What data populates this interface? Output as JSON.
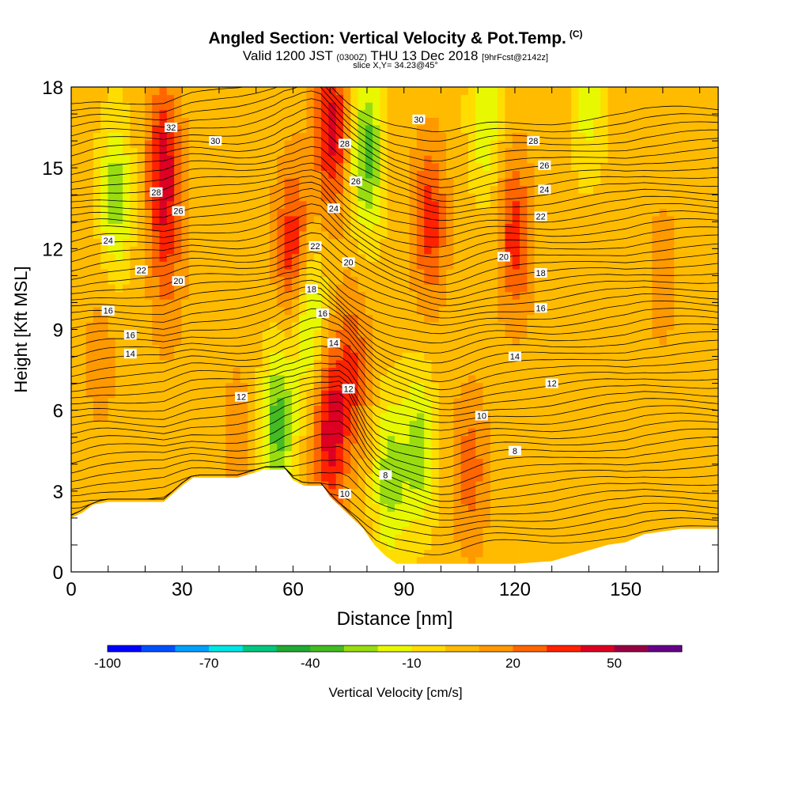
{
  "title": {
    "main": "Angled Section: Vertical Velocity & Pot.Temp.",
    "mark": "(C)",
    "valid_prefix": "Valid 1200 JST",
    "valid_utc": "(0300Z)",
    "valid_date": "THU 13 Dec 2018",
    "valid_fcst": "[9hrFcst@2142z]",
    "slice": "slice X,Y= 34.23@45°"
  },
  "chart_data": {
    "type": "heatmap",
    "x_label": "Distance [nm]",
    "y_label": "Height [Kft MSL]",
    "x_range": [
      0,
      175
    ],
    "y_range": [
      0,
      18
    ],
    "x_ticks": [
      0,
      30,
      60,
      90,
      120,
      150
    ],
    "y_ticks": [
      0,
      3,
      6,
      9,
      12,
      15,
      18
    ],
    "colorbar": {
      "label": "Vertical Velocity [cm/s]",
      "range": [
        -100,
        70
      ],
      "step": 10,
      "tick_values": [
        -100,
        -70,
        -40,
        -10,
        20,
        50
      ],
      "tick_labels": [
        "-100",
        "-70",
        "-40",
        "-10",
        "20",
        "50"
      ],
      "colors": [
        "#0000ff",
        "#0050ff",
        "#00a0ff",
        "#00e6e6",
        "#00c880",
        "#22aa33",
        "#44bb22",
        "#99dd11",
        "#e8f800",
        "#ffdd00",
        "#ffbb00",
        "#ff9900",
        "#ff6600",
        "#ff2200",
        "#dd0022",
        "#990044",
        "#660088"
      ]
    },
    "vertical_velocity_features": [
      {
        "x": 12,
        "y": 14,
        "value": -30
      },
      {
        "x": 25,
        "y": 15,
        "value": 40
      },
      {
        "x": 26,
        "y": 11,
        "value": 15
      },
      {
        "x": 56,
        "y": 5.5,
        "value": -40
      },
      {
        "x": 60,
        "y": 12,
        "value": 35
      },
      {
        "x": 64,
        "y": 9.5,
        "value": -30
      },
      {
        "x": 70,
        "y": 5.2,
        "value": 40
      },
      {
        "x": 70.5,
        "y": 16.5,
        "value": 40
      },
      {
        "x": 80,
        "y": 15.5,
        "value": -40
      },
      {
        "x": 76,
        "y": 7.5,
        "value": 25
      },
      {
        "x": 97,
        "y": 13,
        "value": 30
      },
      {
        "x": 86,
        "y": 3.5,
        "value": -30
      },
      {
        "x": 94,
        "y": 4.5,
        "value": -30
      },
      {
        "x": 112,
        "y": 17,
        "value": -25
      },
      {
        "x": 120,
        "y": 12.5,
        "value": 30
      },
      {
        "x": 140,
        "y": 17.5,
        "value": -20
      },
      {
        "x": 108,
        "y": 3.8,
        "value": 20
      },
      {
        "x": 8,
        "y": 8,
        "value": 10
      },
      {
        "x": 160,
        "y": 11,
        "value": 10
      },
      {
        "x": 45,
        "y": 5,
        "value": 10
      }
    ],
    "potential_temperature_levels": [
      8,
      10,
      12,
      14,
      16,
      18,
      20,
      22,
      24,
      26,
      28,
      30,
      32
    ],
    "potential_temperature_labels": [
      {
        "x": 27,
        "y": 16.5,
        "text": "32"
      },
      {
        "x": 39,
        "y": 16.0,
        "text": "30"
      },
      {
        "x": 23,
        "y": 14.1,
        "text": "28"
      },
      {
        "x": 29,
        "y": 13.4,
        "text": "26"
      },
      {
        "x": 10,
        "y": 12.3,
        "text": "24"
      },
      {
        "x": 19,
        "y": 11.2,
        "text": "22"
      },
      {
        "x": 29,
        "y": 10.8,
        "text": "20"
      },
      {
        "x": 10,
        "y": 9.7,
        "text": "16"
      },
      {
        "x": 16,
        "y": 8.8,
        "text": "16"
      },
      {
        "x": 16,
        "y": 8.1,
        "text": "14"
      },
      {
        "x": 46,
        "y": 6.5,
        "text": "12"
      },
      {
        "x": 74,
        "y": 15.9,
        "text": "28"
      },
      {
        "x": 77,
        "y": 14.5,
        "text": "26"
      },
      {
        "x": 71,
        "y": 13.5,
        "text": "24"
      },
      {
        "x": 66,
        "y": 12.1,
        "text": "22"
      },
      {
        "x": 75,
        "y": 11.5,
        "text": "20"
      },
      {
        "x": 65,
        "y": 10.5,
        "text": "18"
      },
      {
        "x": 68,
        "y": 9.6,
        "text": "16"
      },
      {
        "x": 71,
        "y": 8.5,
        "text": "14"
      },
      {
        "x": 75,
        "y": 6.8,
        "text": "12"
      },
      {
        "x": 74,
        "y": 2.9,
        "text": "10"
      },
      {
        "x": 85,
        "y": 3.6,
        "text": "8"
      },
      {
        "x": 94,
        "y": 16.8,
        "text": "30"
      },
      {
        "x": 125,
        "y": 16.0,
        "text": "28"
      },
      {
        "x": 128,
        "y": 15.1,
        "text": "26"
      },
      {
        "x": 128,
        "y": 14.2,
        "text": "24"
      },
      {
        "x": 127,
        "y": 13.2,
        "text": "22"
      },
      {
        "x": 117,
        "y": 11.7,
        "text": "20"
      },
      {
        "x": 127,
        "y": 11.1,
        "text": "18"
      },
      {
        "x": 127,
        "y": 9.8,
        "text": "16"
      },
      {
        "x": 120,
        "y": 8.0,
        "text": "14"
      },
      {
        "x": 130,
        "y": 7.0,
        "text": "12"
      },
      {
        "x": 111,
        "y": 5.8,
        "text": "10"
      },
      {
        "x": 120,
        "y": 4.5,
        "text": "8"
      }
    ],
    "terrain": [
      [
        0,
        2.0
      ],
      [
        3,
        2.2
      ],
      [
        6,
        2.5
      ],
      [
        10,
        2.6
      ],
      [
        15,
        2.6
      ],
      [
        20,
        2.6
      ],
      [
        25,
        2.6
      ],
      [
        30,
        3.2
      ],
      [
        33,
        3.5
      ],
      [
        40,
        3.5
      ],
      [
        45,
        3.5
      ],
      [
        50,
        3.7
      ],
      [
        52,
        3.8
      ],
      [
        58,
        3.8
      ],
      [
        60,
        3.4
      ],
      [
        63,
        3.2
      ],
      [
        68,
        3.2
      ],
      [
        70,
        2.8
      ],
      [
        73,
        2.4
      ],
      [
        76,
        2.0
      ],
      [
        79,
        1.6
      ],
      [
        82,
        1.0
      ],
      [
        85,
        0.6
      ],
      [
        88,
        0.3
      ],
      [
        90,
        0.3
      ],
      [
        100,
        0.3
      ],
      [
        110,
        0.3
      ],
      [
        120,
        0.3
      ],
      [
        130,
        0.4
      ],
      [
        135,
        0.6
      ],
      [
        140,
        0.8
      ],
      [
        145,
        1.0
      ],
      [
        150,
        1.1
      ],
      [
        155,
        1.4
      ],
      [
        160,
        1.5
      ],
      [
        165,
        1.6
      ],
      [
        170,
        1.6
      ],
      [
        175,
        1.6
      ]
    ]
  }
}
